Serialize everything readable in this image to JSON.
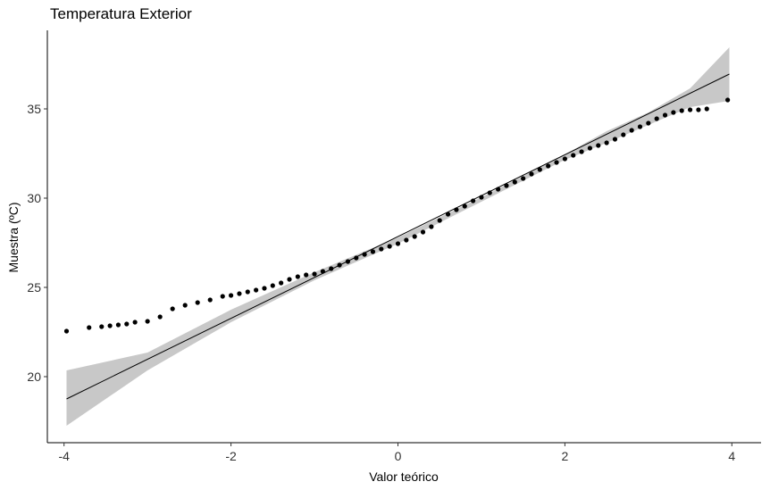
{
  "chart_data": {
    "type": "scatter",
    "title": "Temperatura Exterior",
    "xlabel": "Valor teórico",
    "ylabel": "Muestra (ºC)",
    "xlim": [
      -4.2,
      4.35
    ],
    "ylim": [
      16.3,
      39.4
    ],
    "x_ticks": [
      -4,
      -2,
      0,
      2,
      4
    ],
    "x_tick_labels": [
      "-4",
      "-2",
      "0",
      "2",
      "4"
    ],
    "y_ticks": [
      20,
      25,
      30,
      35
    ],
    "y_tick_labels": [
      "20",
      "25",
      "30",
      "35"
    ],
    "grid": false,
    "reference_line": {
      "x": [
        -3.97,
        3.97
      ],
      "y": [
        18.75,
        36.95
      ]
    },
    "confidence_band": {
      "x": [
        -3.97,
        -3.0,
        -2.0,
        -1.0,
        0.0,
        1.0,
        2.0,
        2.5,
        3.0,
        3.5,
        3.97
      ],
      "lower": [
        17.25,
        20.35,
        23.05,
        25.4,
        27.45,
        29.8,
        32.15,
        33.1,
        34.1,
        35.1,
        35.45
      ],
      "upper": [
        20.35,
        21.35,
        23.75,
        25.85,
        27.8,
        30.05,
        32.45,
        33.75,
        34.8,
        36.15,
        38.45
      ]
    },
    "points": [
      [
        -3.97,
        22.55
      ],
      [
        -3.7,
        22.75
      ],
      [
        -3.55,
        22.8
      ],
      [
        -3.45,
        22.85
      ],
      [
        -3.35,
        22.9
      ],
      [
        -3.25,
        22.95
      ],
      [
        -3.15,
        23.05
      ],
      [
        -3.0,
        23.1
      ],
      [
        -2.85,
        23.35
      ],
      [
        -2.7,
        23.8
      ],
      [
        -2.55,
        24.0
      ],
      [
        -2.4,
        24.15
      ],
      [
        -2.25,
        24.3
      ],
      [
        -2.1,
        24.5
      ],
      [
        -2.0,
        24.55
      ],
      [
        -1.9,
        24.65
      ],
      [
        -1.8,
        24.75
      ],
      [
        -1.7,
        24.85
      ],
      [
        -1.6,
        24.95
      ],
      [
        -1.5,
        25.1
      ],
      [
        -1.4,
        25.25
      ],
      [
        -1.3,
        25.45
      ],
      [
        -1.2,
        25.6
      ],
      [
        -1.1,
        25.7
      ],
      [
        -1.0,
        25.75
      ],
      [
        -0.9,
        25.9
      ],
      [
        -0.8,
        26.05
      ],
      [
        -0.7,
        26.25
      ],
      [
        -0.6,
        26.45
      ],
      [
        -0.5,
        26.65
      ],
      [
        -0.4,
        26.85
      ],
      [
        -0.3,
        27.0
      ],
      [
        -0.2,
        27.15
      ],
      [
        -0.1,
        27.3
      ],
      [
        0.0,
        27.45
      ],
      [
        0.1,
        27.65
      ],
      [
        0.2,
        27.85
      ],
      [
        0.3,
        28.1
      ],
      [
        0.4,
        28.4
      ],
      [
        0.5,
        28.75
      ],
      [
        0.6,
        29.1
      ],
      [
        0.7,
        29.35
      ],
      [
        0.8,
        29.55
      ],
      [
        0.9,
        29.85
      ],
      [
        1.0,
        30.05
      ],
      [
        1.1,
        30.3
      ],
      [
        1.2,
        30.5
      ],
      [
        1.3,
        30.7
      ],
      [
        1.4,
        30.9
      ],
      [
        1.5,
        31.1
      ],
      [
        1.6,
        31.35
      ],
      [
        1.7,
        31.6
      ],
      [
        1.8,
        31.8
      ],
      [
        1.9,
        32.0
      ],
      [
        2.0,
        32.2
      ],
      [
        2.1,
        32.4
      ],
      [
        2.2,
        32.6
      ],
      [
        2.3,
        32.8
      ],
      [
        2.4,
        32.95
      ],
      [
        2.5,
        33.1
      ],
      [
        2.6,
        33.3
      ],
      [
        2.7,
        33.55
      ],
      [
        2.8,
        33.8
      ],
      [
        2.9,
        34.0
      ],
      [
        3.0,
        34.2
      ],
      [
        3.1,
        34.45
      ],
      [
        3.2,
        34.65
      ],
      [
        3.3,
        34.8
      ],
      [
        3.4,
        34.9
      ],
      [
        3.5,
        34.95
      ],
      [
        3.6,
        34.95
      ],
      [
        3.7,
        35.0
      ],
      [
        3.95,
        35.5
      ]
    ]
  }
}
